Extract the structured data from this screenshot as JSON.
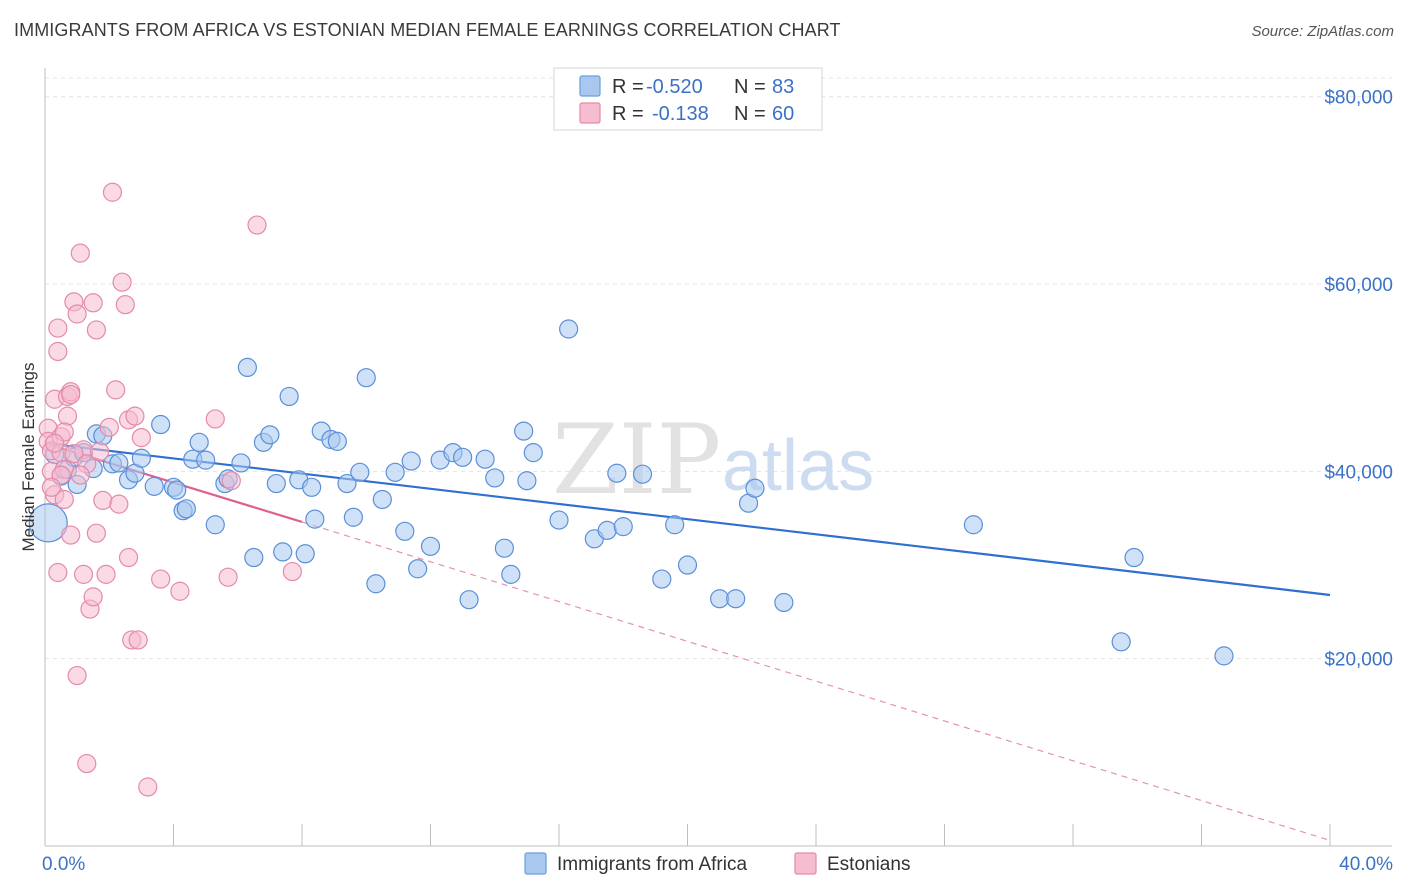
{
  "title": "IMMIGRANTS FROM AFRICA VS ESTONIAN MEDIAN FEMALE EARNINGS CORRELATION CHART",
  "source": "Source: ZipAtlas.com",
  "watermark": {
    "zip": "ZIP",
    "atlas": "atlas"
  },
  "legend": {
    "r_label": "R =",
    "n_label": "N =",
    "rows": [
      {
        "r": "-0.520",
        "n": "83",
        "color": "#a8c8f0",
        "stroke": "#6a9ee0"
      },
      {
        "r": "-0.138",
        "n": "60",
        "color": "#f6bcd0",
        "stroke": "#e58aaa"
      }
    ]
  },
  "chart_data": {
    "type": "scatter",
    "title": "IMMIGRANTS FROM AFRICA VS ESTONIAN MEDIAN FEMALE EARNINGS CORRELATION CHART",
    "xlabel": "",
    "ylabel": "Median Female Earnings",
    "xlim": [
      0,
      40
    ],
    "ylim": [
      0,
      82000
    ],
    "x_tick_labels": [
      "0.0%",
      "40.0%"
    ],
    "y_ticks": [
      20000,
      40000,
      60000,
      80000
    ],
    "y_tick_labels": [
      "$20,000",
      "$40,000",
      "$60,000",
      "$80,000"
    ],
    "grid": true,
    "legend_position": "top-center",
    "series": [
      {
        "name": "Immigrants from Africa",
        "color": "#a8c8f0",
        "stroke": "#5b8fd8",
        "trend": {
          "x": [
            0,
            40
          ],
          "y": [
            43000,
            26800
          ],
          "color": "#2f6fcf",
          "style": "solid"
        },
        "points": [
          [
            0.1,
            34500
          ],
          [
            0.5,
            39500
          ],
          [
            0.7,
            40200
          ],
          [
            0.9,
            41500
          ],
          [
            1.2,
            42000
          ],
          [
            1.5,
            40300
          ],
          [
            1.6,
            44000
          ],
          [
            1.8,
            43800
          ],
          [
            2.1,
            40800
          ],
          [
            2.3,
            40900
          ],
          [
            2.6,
            39100
          ],
          [
            2.8,
            39800
          ],
          [
            3.0,
            41400
          ],
          [
            3.4,
            38400
          ],
          [
            3.6,
            45000
          ],
          [
            4.0,
            38300
          ],
          [
            4.1,
            38000
          ],
          [
            4.3,
            35800
          ],
          [
            4.4,
            36000
          ],
          [
            4.6,
            41300
          ],
          [
            4.8,
            43100
          ],
          [
            5.0,
            41200
          ],
          [
            5.3,
            34300
          ],
          [
            5.6,
            38700
          ],
          [
            5.7,
            39200
          ],
          [
            6.1,
            40900
          ],
          [
            6.3,
            51100
          ],
          [
            6.5,
            30800
          ],
          [
            6.8,
            43100
          ],
          [
            7.0,
            43900
          ],
          [
            7.2,
            38700
          ],
          [
            7.4,
            31400
          ],
          [
            7.6,
            48000
          ],
          [
            7.9,
            39100
          ],
          [
            8.1,
            31200
          ],
          [
            8.3,
            38300
          ],
          [
            8.4,
            34900
          ],
          [
            8.6,
            44300
          ],
          [
            8.9,
            43400
          ],
          [
            9.1,
            43200
          ],
          [
            9.4,
            38700
          ],
          [
            9.6,
            35100
          ],
          [
            9.8,
            39900
          ],
          [
            10.0,
            50000
          ],
          [
            10.3,
            28000
          ],
          [
            10.5,
            37000
          ],
          [
            10.9,
            39900
          ],
          [
            11.2,
            33600
          ],
          [
            11.4,
            41100
          ],
          [
            11.6,
            29600
          ],
          [
            12.0,
            32000
          ],
          [
            12.3,
            41200
          ],
          [
            12.7,
            42000
          ],
          [
            13.0,
            41500
          ],
          [
            13.2,
            26300
          ],
          [
            13.7,
            41300
          ],
          [
            14.0,
            39300
          ],
          [
            14.3,
            31800
          ],
          [
            14.5,
            29000
          ],
          [
            14.9,
            44300
          ],
          [
            15.0,
            39000
          ],
          [
            15.2,
            42000
          ],
          [
            16.0,
            34800
          ],
          [
            16.3,
            55200
          ],
          [
            17.1,
            32800
          ],
          [
            17.5,
            33700
          ],
          [
            17.8,
            39800
          ],
          [
            18.0,
            34100
          ],
          [
            18.6,
            39700
          ],
          [
            19.2,
            28500
          ],
          [
            19.6,
            34300
          ],
          [
            20.0,
            30000
          ],
          [
            21.0,
            26400
          ],
          [
            21.5,
            26400
          ],
          [
            21.9,
            36600
          ],
          [
            22.1,
            38200
          ],
          [
            23.0,
            26000
          ],
          [
            28.9,
            34300
          ],
          [
            33.9,
            30800
          ],
          [
            33.5,
            21800
          ],
          [
            36.7,
            20300
          ],
          [
            0.3,
            41800
          ],
          [
            1.0,
            38600
          ]
        ]
      },
      {
        "name": "Estonians",
        "color": "#f6bcd0",
        "stroke": "#e58aaa",
        "trend_solid": {
          "x": [
            0,
            8
          ],
          "y": [
            43000,
            34600
          ],
          "color": "#e0608e",
          "style": "solid"
        },
        "trend_dashed": {
          "x": [
            8,
            40
          ],
          "y": [
            34600,
            600
          ],
          "color": "#e891b0",
          "style": "dashed"
        },
        "points": [
          [
            0.1,
            44600
          ],
          [
            0.1,
            43200
          ],
          [
            0.2,
            42200
          ],
          [
            0.2,
            40000
          ],
          [
            0.3,
            37500
          ],
          [
            0.3,
            47700
          ],
          [
            0.4,
            55300
          ],
          [
            0.4,
            52800
          ],
          [
            0.5,
            43700
          ],
          [
            0.5,
            42000
          ],
          [
            0.6,
            40200
          ],
          [
            0.6,
            37000
          ],
          [
            0.7,
            48000
          ],
          [
            0.7,
            45900
          ],
          [
            0.8,
            48500
          ],
          [
            0.8,
            33200
          ],
          [
            0.9,
            58100
          ],
          [
            1.0,
            56800
          ],
          [
            1.0,
            18200
          ],
          [
            1.1,
            63300
          ],
          [
            1.2,
            42300
          ],
          [
            1.2,
            29000
          ],
          [
            1.3,
            8800
          ],
          [
            1.4,
            25300
          ],
          [
            1.5,
            58000
          ],
          [
            1.5,
            26600
          ],
          [
            1.6,
            33400
          ],
          [
            1.6,
            55100
          ],
          [
            1.7,
            42100
          ],
          [
            1.8,
            36900
          ],
          [
            1.9,
            29000
          ],
          [
            2.0,
            44700
          ],
          [
            2.1,
            69800
          ],
          [
            2.2,
            48700
          ],
          [
            2.3,
            36500
          ],
          [
            2.4,
            60200
          ],
          [
            2.5,
            57800
          ],
          [
            2.6,
            45500
          ],
          [
            2.6,
            30800
          ],
          [
            2.7,
            22000
          ],
          [
            2.8,
            45900
          ],
          [
            2.9,
            22000
          ],
          [
            3.0,
            43600
          ],
          [
            3.2,
            6300
          ],
          [
            3.6,
            28500
          ],
          [
            4.2,
            27200
          ],
          [
            5.3,
            45600
          ],
          [
            5.7,
            28700
          ],
          [
            5.8,
            39000
          ],
          [
            6.6,
            66300
          ],
          [
            7.7,
            29300
          ],
          [
            0.4,
            29200
          ],
          [
            0.5,
            39600
          ],
          [
            0.6,
            44200
          ],
          [
            0.8,
            48200
          ],
          [
            0.9,
            41900
          ],
          [
            1.3,
            40800
          ],
          [
            0.2,
            38300
          ],
          [
            0.3,
            43000
          ],
          [
            1.1,
            39600
          ]
        ]
      }
    ]
  },
  "bottom_legend": [
    {
      "label": "Immigrants from Africa",
      "color": "#a8c8f0",
      "stroke": "#6a9ee0"
    },
    {
      "label": "Estonians",
      "color": "#f6bcd0",
      "stroke": "#e58aaa"
    }
  ]
}
